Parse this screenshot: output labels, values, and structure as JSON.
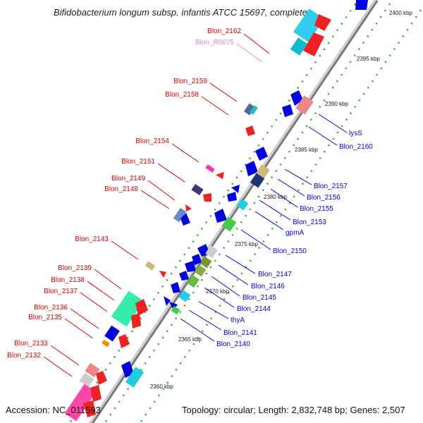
{
  "title": "Bifidobacterium longum subsp. infantis ATCC 15697, complete ...",
  "accession": "Accession: NC_011593",
  "topology": "Topology: circular; Length: 2,832,748 bp; Genes: 2,507",
  "colors": {
    "left_label": "#dd0000",
    "right_label": "#0000dd",
    "rna_label": "#ee88cc",
    "backbone": "#999999",
    "dots": "#228822"
  },
  "ticks": [
    "2400 kbp",
    "2395 kbp",
    "2390 kbp",
    "2385 kbp",
    "2380 kbp",
    "2375 kbp",
    "2370 kbp",
    "2365 kbp",
    "2360 kbp"
  ],
  "left_labels": [
    "Blon_2162",
    "Blon_R0075",
    "Blon_2159",
    "Blon_2158",
    "Blon_2154",
    "Blon_2151",
    "Blon_2149",
    "Blon_2148",
    "Blon_2143",
    "Blon_2139",
    "Blon_2138",
    "Blon_2137",
    "Blon_2136",
    "Blon_2135",
    "Blon_2133",
    "Blon_2132"
  ],
  "right_labels": [
    "lysS",
    "Blon_2160",
    "Blon_2157",
    "Blon_2156",
    "Blon_2155",
    "Blon_2153",
    "gpmA",
    "Blon_2150",
    "Blon_2147",
    "Blon_2146",
    "Blon_2145",
    "Blon_2144",
    "thyA",
    "Blon_2141",
    "Blon_2140"
  ]
}
